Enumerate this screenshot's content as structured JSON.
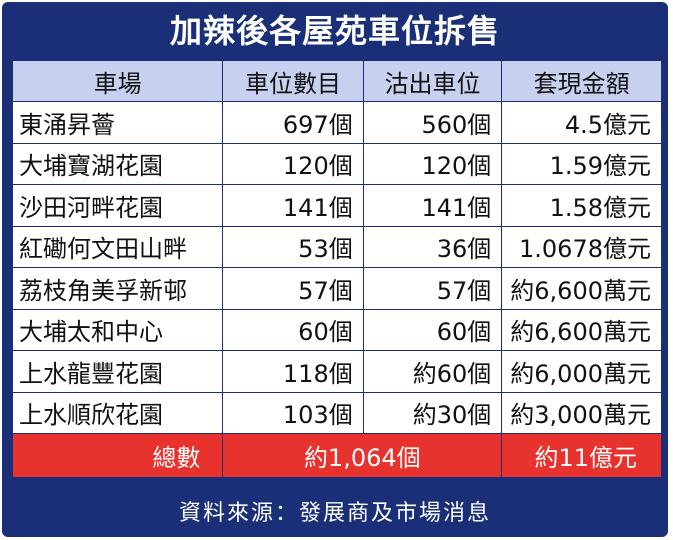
{
  "title": "加辣後各屋苑車位拆售",
  "headers": [
    "車場",
    "車位數目",
    "沽出車位",
    "套現金額"
  ],
  "rows": [
    {
      "name": "東涌昇薈",
      "spaces": "697個",
      "sold": "560個",
      "cash": "4.5億元"
    },
    {
      "name": "大埔寶湖花園",
      "spaces": "120個",
      "sold": "120個",
      "cash": "1.59億元"
    },
    {
      "name": "沙田河畔花園",
      "spaces": "141個",
      "sold": "141個",
      "cash": "1.58億元"
    },
    {
      "name": "紅磡何文田山畔",
      "spaces": "53個",
      "sold": "36個",
      "cash": "1.0678億元"
    },
    {
      "name": "荔枝角美孚新邨",
      "spaces": "57個",
      "sold": "57個",
      "cash": "約6,600萬元"
    },
    {
      "name": "大埔太和中心",
      "spaces": "60個",
      "sold": "60個",
      "cash": "約6,600萬元"
    },
    {
      "name": "上水龍豐花園",
      "spaces": "118個",
      "sold": "約60個",
      "cash": "約6,000萬元"
    },
    {
      "name": "上水順欣花園",
      "spaces": "103個",
      "sold": "約30個",
      "cash": "約3,000萬元"
    }
  ],
  "total": {
    "label": "總數",
    "sold": "約1,064個",
    "cash": "約11億元"
  },
  "source": "資料來源：發展商及市場消息",
  "colors": {
    "navy": "#1a2f78",
    "header_bg": "#c7d0ee",
    "total_bg": "#e8322d"
  }
}
